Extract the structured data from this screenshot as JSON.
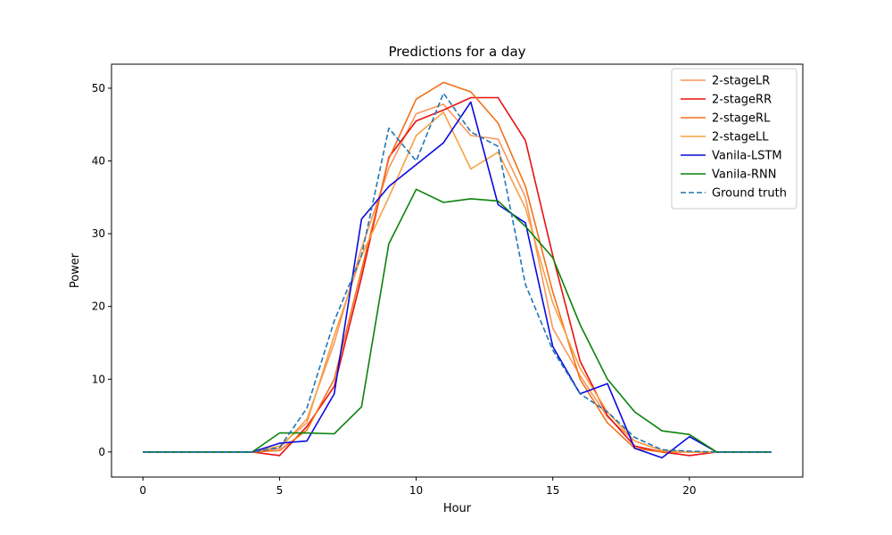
{
  "chart_data": {
    "type": "line",
    "title": "Predictions for a day",
    "xlabel": "Hour",
    "ylabel": "Power",
    "xlim": [
      -1.15,
      24.15
    ],
    "ylim": [
      -3.45,
      53.3
    ],
    "xticks": [
      0,
      5,
      10,
      15,
      20
    ],
    "yticks": [
      0,
      10,
      20,
      30,
      40,
      50
    ],
    "grid": false,
    "legend_position": "top-right",
    "x": [
      0,
      1,
      2,
      3,
      4,
      5,
      6,
      7,
      8,
      9,
      10,
      11,
      12,
      13,
      14,
      15,
      16,
      17,
      18,
      19,
      20,
      21,
      22,
      23
    ],
    "series": [
      {
        "name": "2-stageLR",
        "color": "#f9965a",
        "dash": "solid",
        "values": [
          0,
          0,
          0,
          0,
          0,
          0.5,
          4.5,
          15,
          28,
          39,
          46.5,
          47.8,
          43.5,
          43,
          35,
          17,
          10.5,
          4.8,
          1.5,
          0.2,
          0,
          0,
          0,
          0
        ]
      },
      {
        "name": "2-stageRR",
        "color": "#e81010",
        "dash": "solid",
        "values": [
          0,
          0,
          0,
          0,
          0,
          -0.5,
          3.5,
          9,
          24,
          40.5,
          45.5,
          47,
          48.7,
          48.7,
          42.8,
          27,
          12.5,
          5,
          0.8,
          0,
          -0.5,
          0,
          0,
          0
        ]
      },
      {
        "name": "2-stageRL",
        "color": "#f2711a",
        "dash": "solid",
        "values": [
          0,
          0,
          0,
          0,
          0,
          0.2,
          3,
          10,
          25,
          40.3,
          48.5,
          50.8,
          49.5,
          45.2,
          36.5,
          22,
          10,
          4,
          0.5,
          0,
          0,
          0,
          0,
          0
        ]
      },
      {
        "name": "2-stageLL",
        "color": "#f9a043",
        "dash": "solid",
        "values": [
          0,
          0,
          0,
          0,
          0,
          0.8,
          4,
          16,
          27,
          35,
          43.5,
          46.7,
          38.9,
          41.2,
          33.5,
          20.5,
          11.5,
          5.5,
          1.5,
          0.2,
          0,
          0,
          0,
          0
        ]
      },
      {
        "name": "Vanila-LSTM",
        "color": "#0a0adc",
        "dash": "solid",
        "values": [
          0,
          0,
          0,
          0,
          0,
          1.2,
          1.5,
          8,
          32,
          36.5,
          39.5,
          42.5,
          48.1,
          34,
          31.5,
          14.5,
          8,
          9.4,
          0.5,
          -0.8,
          2.1,
          0,
          0,
          0
        ]
      },
      {
        "name": "Vanila-RNN",
        "color": "#0a820a",
        "dash": "solid",
        "values": [
          0,
          0,
          0,
          0,
          0,
          2.6,
          2.6,
          2.5,
          6.2,
          28.6,
          36.1,
          34.3,
          34.8,
          34.5,
          31,
          26.7,
          17.5,
          10,
          5.5,
          2.9,
          2.4,
          0,
          0,
          0
        ]
      },
      {
        "name": "Ground truth",
        "color": "#1f77b4",
        "dash": "dashed",
        "values": [
          0,
          0,
          0,
          0,
          0,
          0.6,
          6,
          18,
          27,
          44.5,
          40,
          49.3,
          44,
          42,
          23,
          14,
          8,
          5.5,
          2,
          0.3,
          0.1,
          0,
          0,
          0
        ]
      }
    ]
  }
}
